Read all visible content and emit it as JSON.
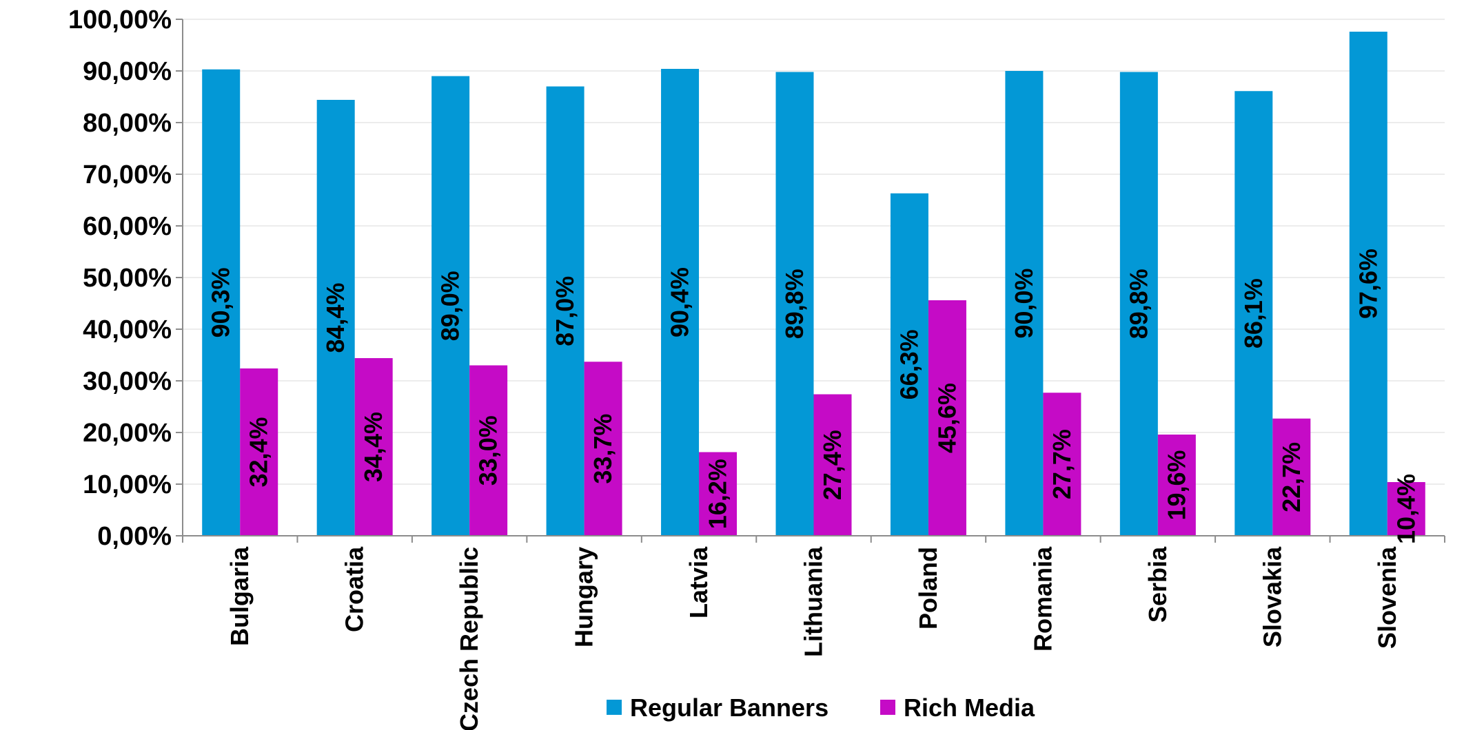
{
  "chart_data": {
    "type": "bar",
    "title": "",
    "xlabel": "",
    "ylabel": "",
    "ylim": [
      0,
      100
    ],
    "ytick_step": 10,
    "ytick_labels": [
      "0,00%",
      "10,00%",
      "20,00%",
      "30,00%",
      "40,00%",
      "50,00%",
      "60,00%",
      "70,00%",
      "80,00%",
      "90,00%",
      "100,00%"
    ],
    "grid": true,
    "legend_position": "bottom",
    "categories": [
      "Bulgaria",
      "Croatia",
      "Czech Republic",
      "Hungary",
      "Latvia",
      "Lithuania",
      "Poland",
      "Romania",
      "Serbia",
      "Slovakia",
      "Slovenia"
    ],
    "series": [
      {
        "name": "Regular Banners",
        "color": "#0398D6",
        "values": [
          90.3,
          84.4,
          89.0,
          87.0,
          90.4,
          89.8,
          66.3,
          90.0,
          89.8,
          86.1,
          97.6
        ],
        "labels": [
          "90,3%",
          "84,4%",
          "89,0%",
          "87,0%",
          "90,4%",
          "89,8%",
          "66,3%",
          "90,0%",
          "89,8%",
          "86,1%",
          "97,6%"
        ]
      },
      {
        "name": "Rich Media",
        "color": "#C50BC6",
        "values": [
          32.4,
          34.4,
          33.0,
          33.7,
          16.2,
          27.4,
          45.6,
          27.7,
          19.6,
          22.7,
          10.4
        ],
        "labels": [
          "32,4%",
          "34,4%",
          "33,0%",
          "33,7%",
          "16,2%",
          "27,4%",
          "45,6%",
          "27,7%",
          "19,6%",
          "22,7%",
          "10,4%"
        ]
      }
    ]
  }
}
